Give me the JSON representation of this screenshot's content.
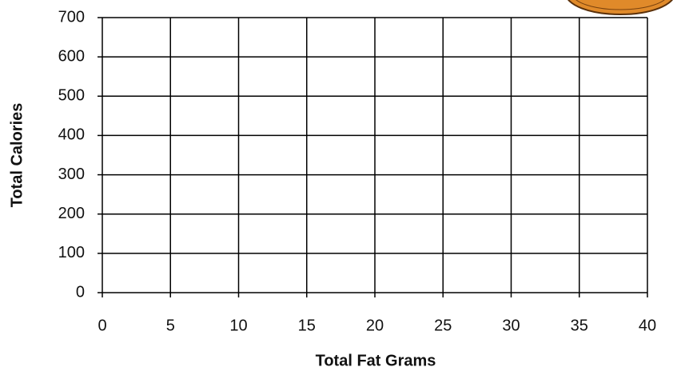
{
  "chart_data": {
    "type": "scatter",
    "x_label": "Total Fat Grams",
    "y_label": "Total Calories",
    "xlim": [
      0,
      40
    ],
    "xticks": [
      0,
      5,
      10,
      15,
      20,
      25,
      30,
      35,
      40
    ],
    "ylim": [
      0,
      700
    ],
    "yticks": [
      0,
      100,
      200,
      300,
      400,
      500,
      600,
      700
    ],
    "grid": true
  }
}
